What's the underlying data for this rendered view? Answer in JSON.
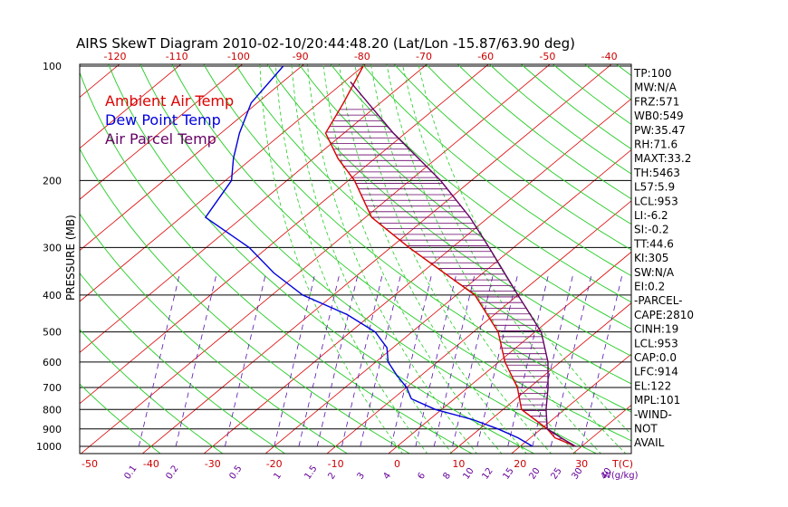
{
  "chart_data": {
    "type": "line",
    "title": "AIRS SkewT Diagram 2010-02-10/20:44:48.20 (Lat/Lon -15.87/63.90 deg)",
    "ylabel": "PRESSURE (MB)",
    "xlabel": "T(C)",
    "mixing_ratio_unit": "W(g/kg)",
    "top_ticks": [
      -120,
      -110,
      -100,
      -90,
      -80,
      -70,
      -60,
      -50,
      -40
    ],
    "bottom_ticks": [
      -50,
      -40,
      -30,
      -20,
      -10,
      0,
      10,
      20,
      30
    ],
    "bottom_tick_labels": [
      "-50",
      "-40",
      "-30",
      "-20",
      "-10",
      "0",
      "10",
      "20",
      "30"
    ],
    "pressure_ticks": [
      100,
      200,
      300,
      400,
      500,
      600,
      700,
      800,
      900,
      1000
    ],
    "mixing_ratio_labels": [
      "0.1",
      "0.2",
      "0.5",
      "1",
      "1.5",
      "2",
      "3",
      "4",
      "6",
      "8",
      "10",
      "12",
      "15",
      "20",
      "25",
      "30",
      "40"
    ],
    "legend": [
      {
        "label": "Ambient Air Temp",
        "color": "#dd0000"
      },
      {
        "label": "Dew Point Temp",
        "color": "#0000dd"
      },
      {
        "label": "Air Parcel Temp",
        "color": "#660066"
      }
    ],
    "series": [
      {
        "name": "Ambient Air Temp",
        "color": "#dd0000",
        "pressure": [
          100,
          125,
          150,
          175,
          200,
          250,
          300,
          400,
          500,
          600,
          700,
          800,
          900,
          950,
          1000
        ],
        "temperature": [
          -80,
          -76,
          -73,
          -66,
          -59,
          -49,
          -37,
          -17,
          -6,
          1,
          8,
          13,
          21,
          24,
          29
        ]
      },
      {
        "name": "Dew Point Temp",
        "color": "#0000dd",
        "pressure": [
          100,
          125,
          150,
          175,
          200,
          250,
          300,
          350,
          400,
          450,
          500,
          550,
          600,
          650,
          700,
          750,
          800,
          850,
          900,
          950,
          1000
        ],
        "temperature": [
          -93,
          -91,
          -87,
          -83,
          -79,
          -76,
          -63,
          -54,
          -45,
          -34,
          -26,
          -21,
          -18,
          -14,
          -10,
          -7,
          -1,
          7,
          13,
          18,
          22
        ]
      },
      {
        "name": "Air Parcel Temp",
        "color": "#660066",
        "pressure": [
          110,
          150,
          200,
          250,
          300,
          400,
          500,
          600,
          700,
          800,
          900,
          950,
          1000
        ],
        "temperature": [
          -79,
          -62,
          -45,
          -33,
          -24,
          -10,
          1,
          8,
          13,
          17,
          21,
          25,
          29
        ]
      }
    ],
    "grid": true
  },
  "indices": [
    "TP:100",
    "MW:N/A",
    "FRZ:571",
    "WB0:549",
    "PW:35.47",
    "RH:71.6",
    "MAXT:33.2",
    "TH:5463",
    "L57:5.9",
    "LCL:953",
    "LI:-6.2",
    "SI:-0.2",
    "TT:44.6",
    "KI:305",
    "SW:N/A",
    "EI:0.2",
    "-PARCEL-",
    "CAPE:2810",
    "CINH:19",
    "LCL:953",
    "CAP:0.0",
    "LFC:914",
    "EL:122",
    "MPL:101",
    "-WIND-",
    "NOT",
    "AVAIL"
  ]
}
